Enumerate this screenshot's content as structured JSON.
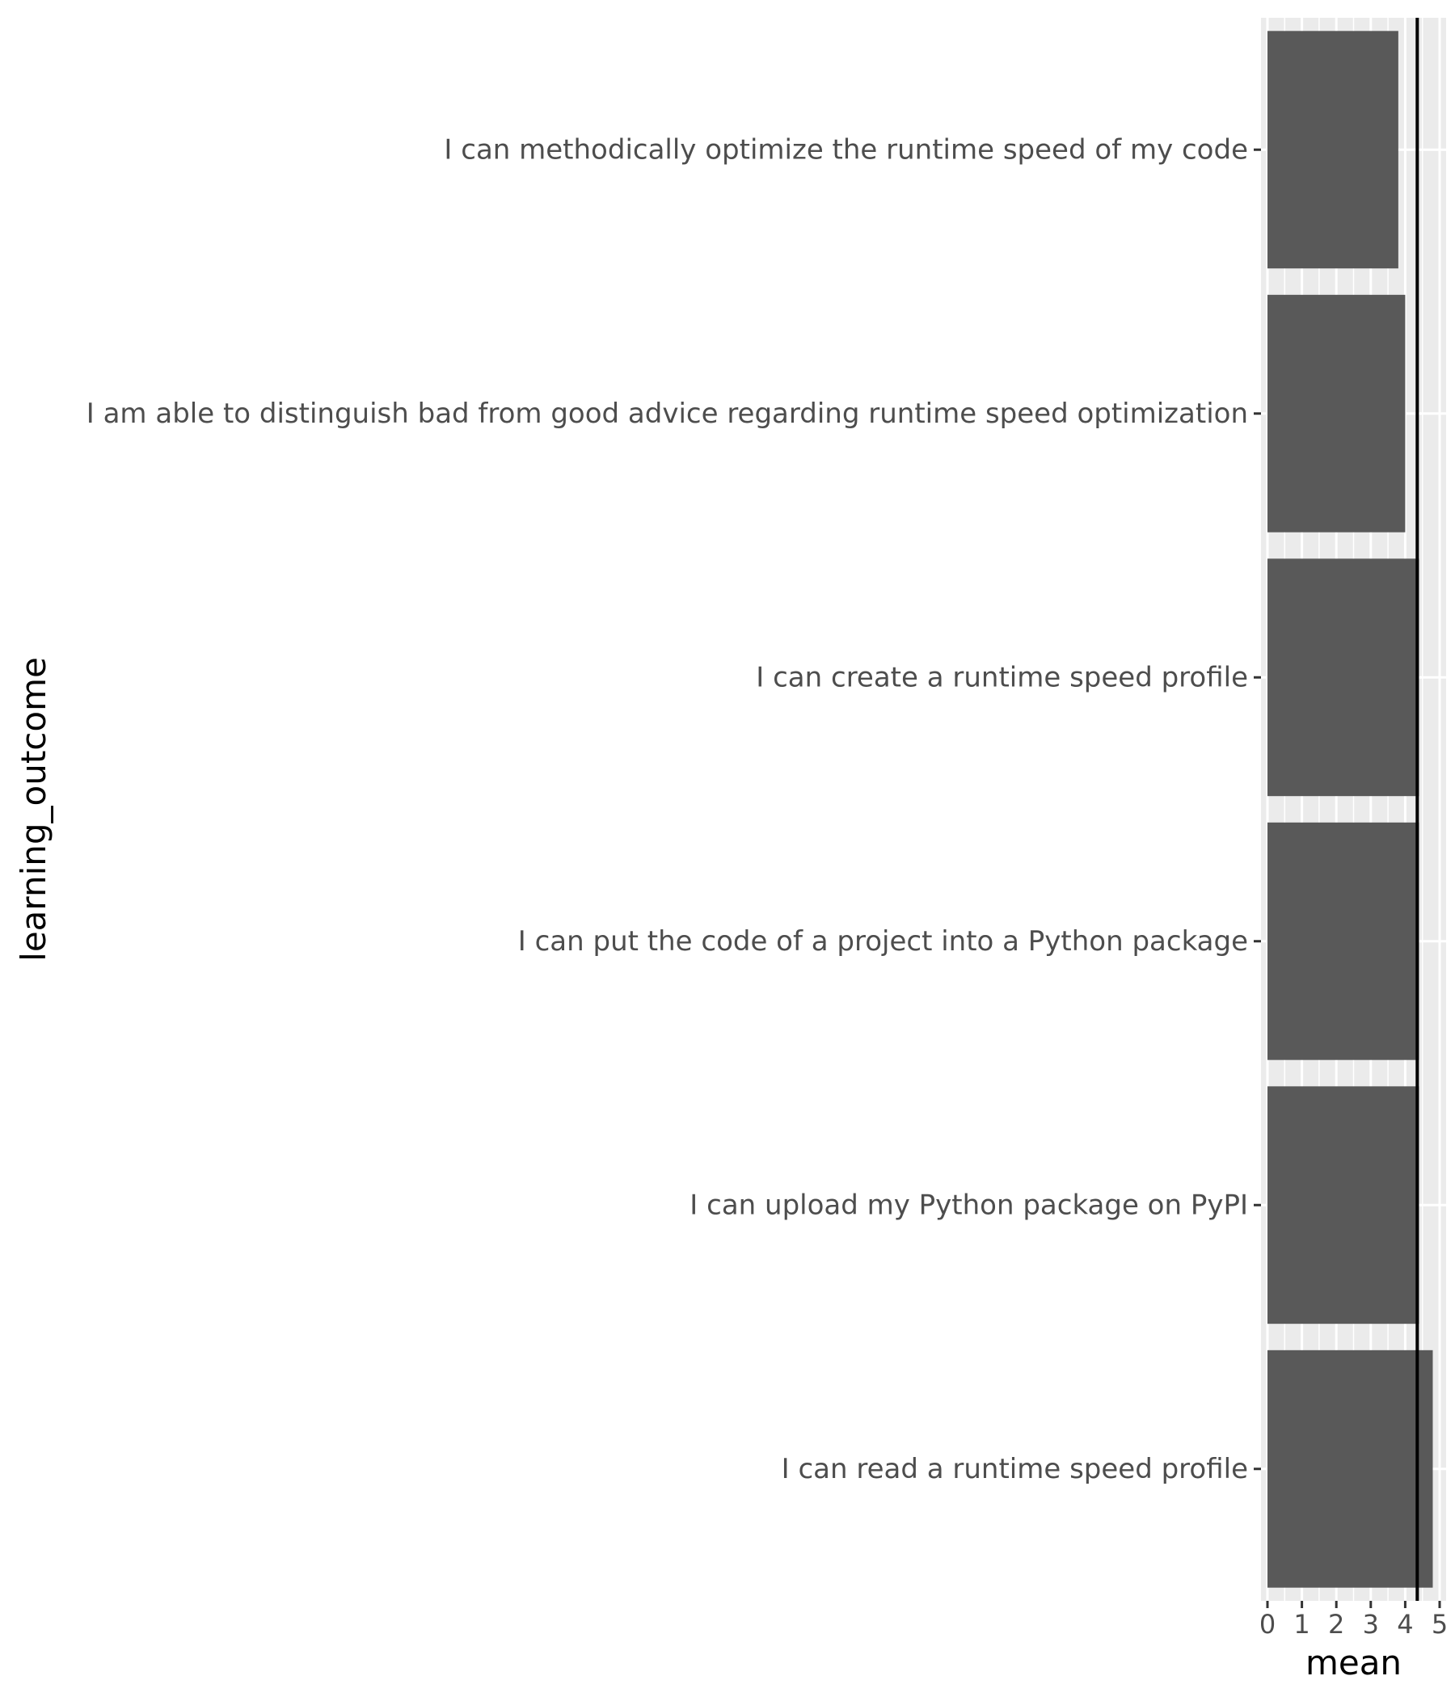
{
  "chart_data": {
    "type": "bar",
    "orientation": "horizontal",
    "categories": [
      "I can methodically optimize the runtime speed of my code",
      "I am able to distinguish bad from good advice regarding runtime speed optimization",
      "I can create a runtime speed profile",
      "I can put the code of a project into a Python package",
      "I can upload my Python package on PyPI",
      "I can read a runtime speed profile"
    ],
    "values": [
      3.8,
      4.0,
      4.4,
      4.4,
      4.4,
      4.8
    ],
    "reference_line": 4.35,
    "xlabel": "mean",
    "ylabel": "learning_outcome",
    "xlim": [
      0,
      5
    ],
    "xticks": [
      "0",
      "1",
      "2",
      "3",
      "4",
      "5"
    ],
    "grid": true,
    "colors": {
      "bar": "#595959",
      "panel": "#ebebeb",
      "grid": "#ffffff",
      "reference_line": "#000000"
    }
  }
}
